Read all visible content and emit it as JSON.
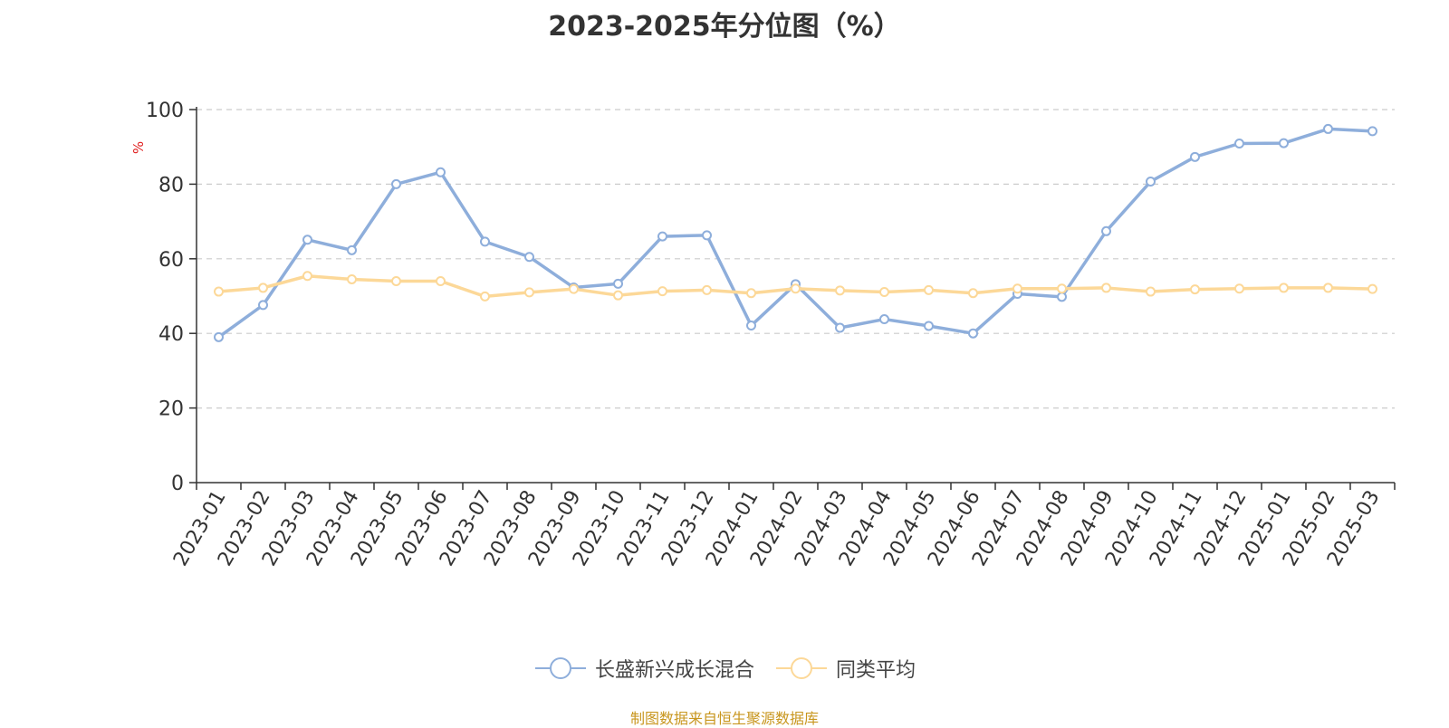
{
  "title": "2023-2025年分位图（%）",
  "footer": {
    "text": "制图数据来自恒生聚源数据库",
    "color": "#c8961e"
  },
  "chart_data": {
    "type": "line",
    "title": "2023-2025年分位图（%）",
    "ylabel": "%",
    "ylim": [
      0,
      100
    ],
    "yticks": [
      0,
      20,
      40,
      60,
      80,
      100
    ],
    "grid": true,
    "legend_position": "bottom-center",
    "categories": [
      "2023-01",
      "2023-02",
      "2023-03",
      "2023-04",
      "2023-05",
      "2023-06",
      "2023-07",
      "2023-08",
      "2023-09",
      "2023-10",
      "2023-11",
      "2023-12",
      "2024-01",
      "2024-02",
      "2024-03",
      "2024-04",
      "2024-05",
      "2024-06",
      "2024-07",
      "2024-08",
      "2024-09",
      "2024-10",
      "2024-11",
      "2024-12",
      "2025-01",
      "2025-02",
      "2025-03"
    ],
    "series": [
      {
        "name": "长盛新兴成长混合",
        "color": "#8eaedb",
        "values": [
          39.0,
          47.6,
          65.1,
          62.3,
          80.0,
          83.2,
          64.6,
          60.5,
          52.3,
          53.3,
          66.0,
          66.3,
          42.1,
          53.2,
          41.5,
          43.8,
          42.0,
          40.0,
          50.6,
          49.8,
          67.4,
          80.7,
          87.3,
          90.9,
          91.0,
          94.8,
          94.2
        ]
      },
      {
        "name": "同类平均",
        "color": "#fcd898",
        "values": [
          51.2,
          52.2,
          55.4,
          54.5,
          54.0,
          54.0,
          49.9,
          51.0,
          51.9,
          50.2,
          51.3,
          51.6,
          50.8,
          52.0,
          51.5,
          51.1,
          51.6,
          50.8,
          52.0,
          52.0,
          52.2,
          51.2,
          51.8,
          52.0,
          52.2,
          52.2,
          51.9
        ]
      }
    ]
  }
}
